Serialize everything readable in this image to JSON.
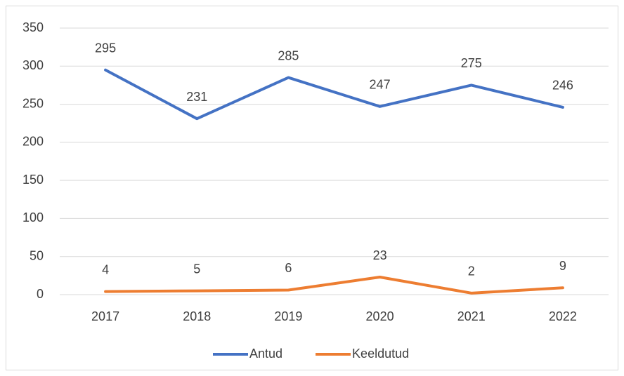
{
  "chart_data": {
    "type": "line",
    "categories": [
      "2017",
      "2018",
      "2019",
      "2020",
      "2021",
      "2022"
    ],
    "series": [
      {
        "name": "Antud",
        "color": "#4472c4",
        "values": [
          295,
          231,
          285,
          247,
          275,
          246
        ]
      },
      {
        "name": "Keeldutud",
        "color": "#ed7d31",
        "values": [
          4,
          5,
          6,
          23,
          2,
          9
        ]
      }
    ],
    "ylim": [
      0,
      350
    ],
    "yticks": [
      0,
      50,
      100,
      150,
      200,
      250,
      300,
      350
    ],
    "grid": true,
    "legend": "bottom"
  }
}
